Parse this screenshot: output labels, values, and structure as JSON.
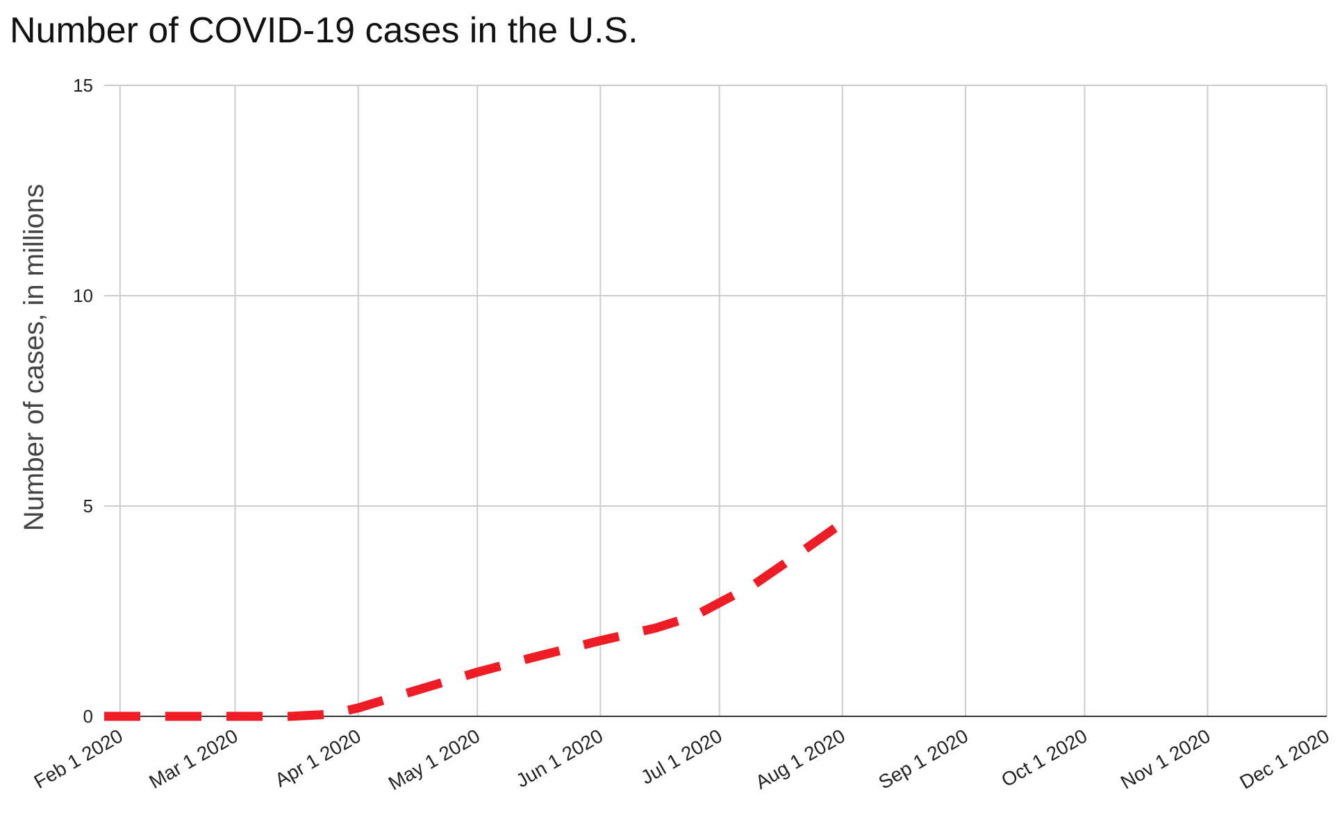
{
  "chart_data": {
    "type": "line",
    "title": "Number of COVID-19 cases in the U.S.",
    "xlabel": "",
    "ylabel": "Number of cases, in millions",
    "ylim": [
      0,
      15
    ],
    "yticks": [
      0,
      5,
      10,
      15
    ],
    "xlim": [
      "2020-01-28",
      "2020-12-01"
    ],
    "xticks": [
      {
        "date": "2020-02-01",
        "label": "Feb 1 2020"
      },
      {
        "date": "2020-03-01",
        "label": "Mar 1 2020"
      },
      {
        "date": "2020-04-01",
        "label": "Apr 1 2020"
      },
      {
        "date": "2020-05-01",
        "label": "May 1 2020"
      },
      {
        "date": "2020-06-01",
        "label": "Jun 1 2020"
      },
      {
        "date": "2020-07-01",
        "label": "Jul 1 2020"
      },
      {
        "date": "2020-08-01",
        "label": "Aug 1 2020"
      },
      {
        "date": "2020-09-01",
        "label": "Sep 1 2020"
      },
      {
        "date": "2020-10-01",
        "label": "Oct 1 2020"
      },
      {
        "date": "2020-11-01",
        "label": "Nov 1 2020"
      },
      {
        "date": "2020-12-01",
        "label": "Dec 1 2020"
      }
    ],
    "grid": true,
    "series": [
      {
        "color": "#ee1c25",
        "line_style": "dashed",
        "points": [
          {
            "x": "2020-01-28",
            "y": 0
          },
          {
            "x": "2020-02-15",
            "y": 0
          },
          {
            "x": "2020-03-01",
            "y": 0
          },
          {
            "x": "2020-03-15",
            "y": 0
          },
          {
            "x": "2020-03-25",
            "y": 0.05
          },
          {
            "x": "2020-04-01",
            "y": 0.2
          },
          {
            "x": "2020-04-15",
            "y": 0.6
          },
          {
            "x": "2020-05-01",
            "y": 1.05
          },
          {
            "x": "2020-05-15",
            "y": 1.4
          },
          {
            "x": "2020-06-01",
            "y": 1.8
          },
          {
            "x": "2020-06-15",
            "y": 2.1
          },
          {
            "x": "2020-06-25",
            "y": 2.4
          },
          {
            "x": "2020-07-01",
            "y": 2.7
          },
          {
            "x": "2020-07-10",
            "y": 3.15
          },
          {
            "x": "2020-07-20",
            "y": 3.8
          },
          {
            "x": "2020-08-01",
            "y": 4.6
          }
        ]
      }
    ]
  }
}
